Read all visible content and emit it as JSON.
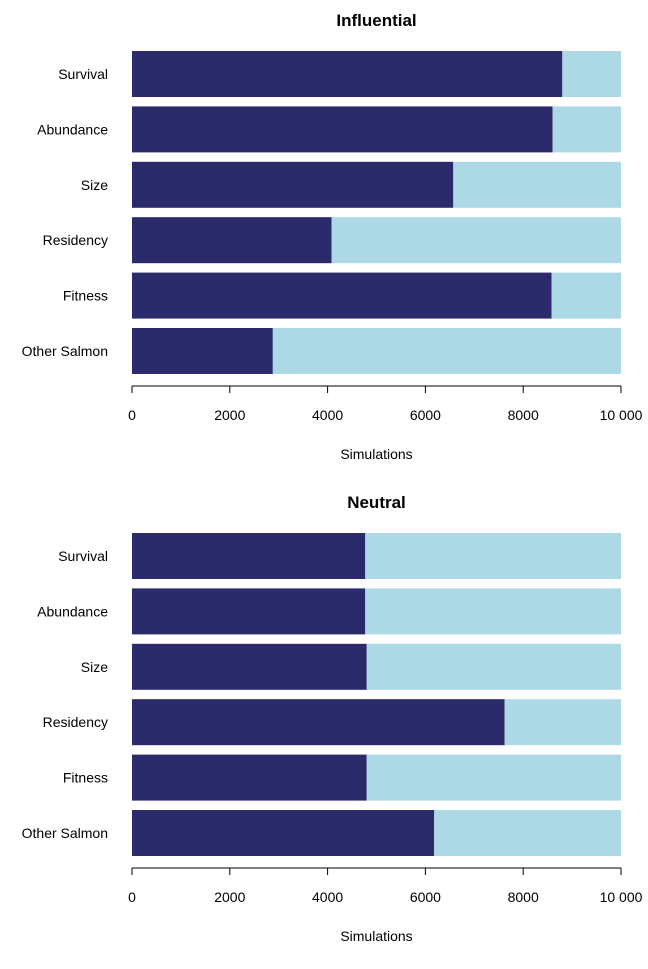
{
  "chart_data": [
    {
      "type": "bar",
      "orientation": "horizontal",
      "stacked": true,
      "title": "Influential",
      "xlabel": "Simulations",
      "ylabel": "",
      "xlim": [
        0,
        10000
      ],
      "ticks": [
        0,
        2000,
        4000,
        6000,
        8000,
        10000
      ],
      "tick_labels": [
        "0",
        "2000",
        "4000",
        "6000",
        "8000",
        "10 000"
      ],
      "categories": [
        "Survival",
        "Abundance",
        "Size",
        "Residency",
        "Fitness",
        "Other Salmon"
      ],
      "series": [
        {
          "values": [
            8800,
            8600,
            6570,
            4080,
            8580,
            2880
          ],
          "color": "#2b2a6b"
        },
        {
          "values": [
            1200,
            1400,
            3430,
            5920,
            1420,
            7120
          ],
          "color": "#add8e6"
        }
      ],
      "grid": false,
      "legend": "none"
    },
    {
      "type": "bar",
      "orientation": "horizontal",
      "stacked": true,
      "title": "Neutral",
      "xlabel": "Simulations",
      "ylabel": "",
      "xlim": [
        0,
        10000
      ],
      "ticks": [
        0,
        2000,
        4000,
        6000,
        8000,
        10000
      ],
      "tick_labels": [
        "0",
        "2000",
        "4000",
        "6000",
        "8000",
        "10 000"
      ],
      "categories": [
        "Survival",
        "Abundance",
        "Size",
        "Residency",
        "Fitness",
        "Other Salmon"
      ],
      "series": [
        {
          "values": [
            4770,
            4770,
            4800,
            7620,
            4800,
            6180
          ],
          "color": "#2b2a6b"
        },
        {
          "values": [
            5230,
            5230,
            5200,
            2380,
            5200,
            3820
          ],
          "color": "#add8e6"
        }
      ],
      "grid": false,
      "legend": "none"
    }
  ]
}
